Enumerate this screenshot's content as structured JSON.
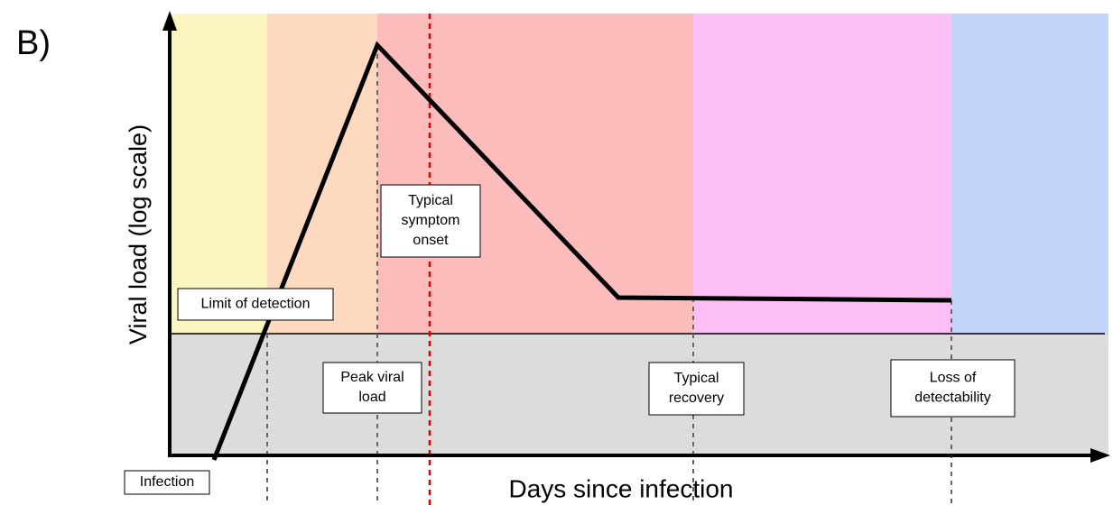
{
  "panel_label": "B)",
  "axes": {
    "y_label": "Viral load (log scale)",
    "x_label": "Days since infection"
  },
  "annotations": [
    {
      "lines": [
        "Limit of detection"
      ]
    },
    {
      "lines": [
        "Typical",
        "symptom",
        "onset"
      ]
    },
    {
      "lines": [
        "Peak viral",
        "load"
      ]
    },
    {
      "lines": [
        "Typical",
        "recovery"
      ]
    },
    {
      "lines": [
        "Loss of",
        "detectability"
      ]
    },
    {
      "lines": [
        "Infection"
      ]
    }
  ]
}
